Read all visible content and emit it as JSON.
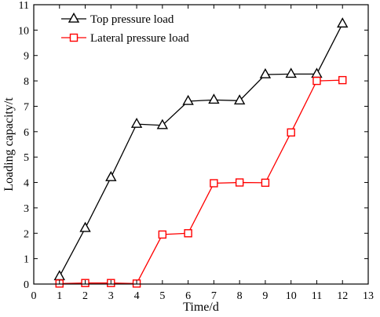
{
  "chart_data": {
    "type": "line",
    "xlabel": "Time/d",
    "ylabel": "Loading capacity/t",
    "xlim": [
      0,
      13
    ],
    "ylim": [
      0,
      11
    ],
    "xticks": [
      0,
      1,
      2,
      3,
      4,
      5,
      6,
      7,
      8,
      9,
      10,
      11,
      12,
      13
    ],
    "yticks": [
      0,
      1,
      2,
      3,
      4,
      5,
      6,
      7,
      8,
      9,
      10,
      11
    ],
    "grid": false,
    "legend_position": "top-left",
    "x": [
      1,
      2,
      3,
      4,
      5,
      6,
      7,
      8,
      9,
      10,
      11,
      12
    ],
    "series": [
      {
        "name": "Top pressure load",
        "color": "#000000",
        "marker": "triangle",
        "values": [
          0.3,
          2.2,
          4.2,
          6.3,
          6.25,
          7.2,
          7.25,
          7.22,
          8.25,
          8.27,
          8.27,
          10.25
        ]
      },
      {
        "name": "Lateral pressure load",
        "color": "#ff0000",
        "marker": "square",
        "values": [
          0.02,
          0.04,
          0.04,
          0.02,
          1.95,
          2.0,
          3.97,
          4.0,
          3.99,
          5.97,
          8.0,
          8.03
        ]
      }
    ]
  }
}
